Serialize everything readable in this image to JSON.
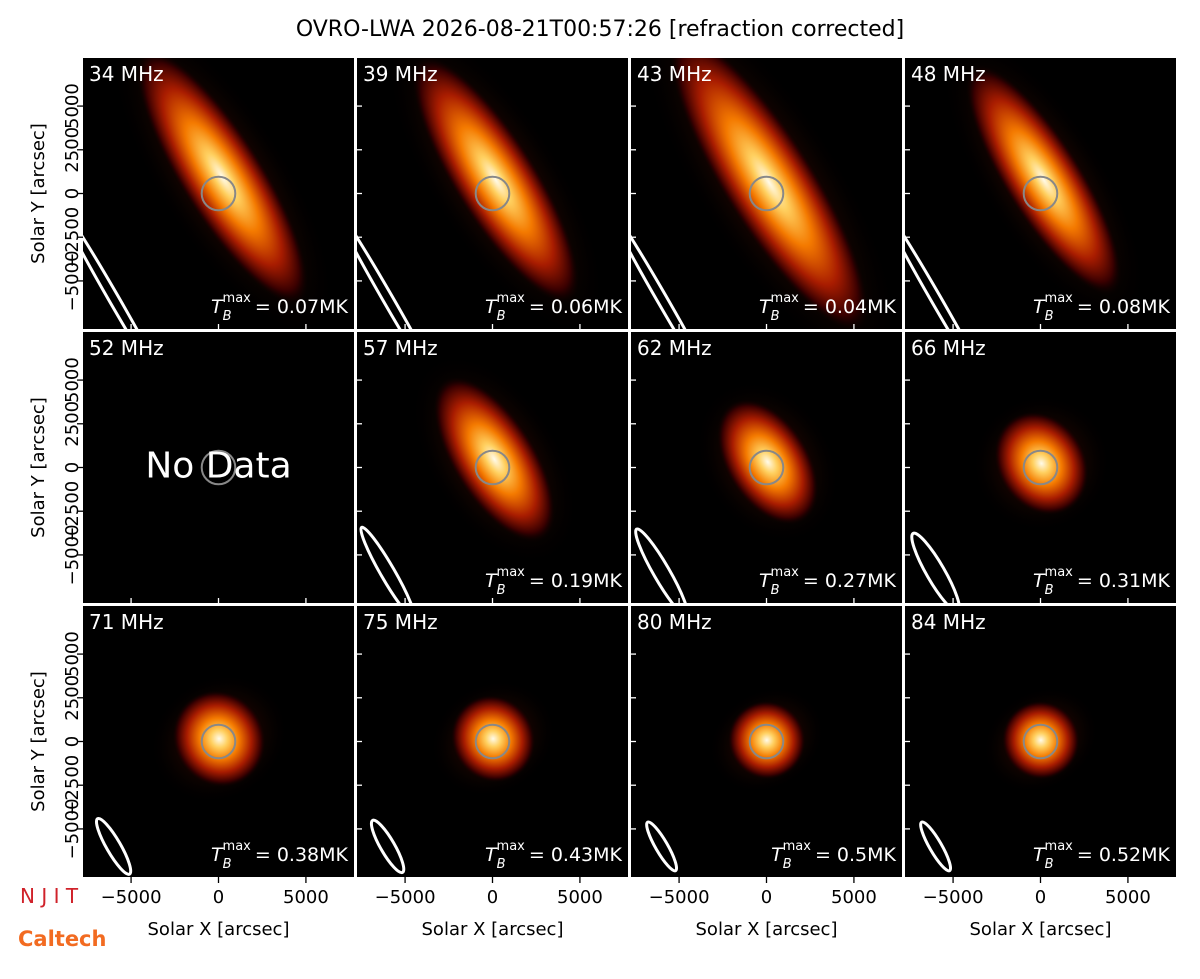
{
  "title": "OVRO-LWA 2026-08-21T00:57:26 [refraction corrected]",
  "xlabel": "Solar X [arcsec]",
  "ylabel": "Solar Y [arcsec]",
  "tb_symbol": {
    "main": "T",
    "sub": "B",
    "sup": "max"
  },
  "logos": [
    "N J I T",
    "Caltech"
  ],
  "xlim": [
    -7750,
    7750
  ],
  "ylim": [
    -7750,
    7750
  ],
  "xticks": [
    {
      "value": -5000,
      "label": "−5000"
    },
    0,
    5000
  ],
  "yticks": [
    {
      "value": -5000,
      "label": "−5000"
    },
    {
      "value": -2500,
      "label": "−2500"
    },
    0,
    2500,
    5000
  ],
  "chart_data": [
    {
      "type": "image",
      "title": "34 MHz",
      "annotation": "= 0.07MK"
    },
    {
      "type": "image",
      "title": "39 MHz",
      "annotation": "= 0.06MK"
    },
    {
      "type": "image",
      "title": "43 MHz",
      "annotation": "= 0.04MK"
    },
    {
      "type": "image",
      "title": "48 MHz",
      "annotation": "= 0.08MK"
    },
    {
      "type": "image",
      "title": "52 MHz",
      "note": "No Data"
    },
    {
      "type": "image",
      "title": "57 MHz",
      "annotation": "= 0.19MK"
    },
    {
      "type": "image",
      "title": "62 MHz",
      "annotation": "= 0.27MK"
    },
    {
      "type": "image",
      "title": "66 MHz",
      "annotation": "= 0.31MK"
    },
    {
      "type": "image",
      "title": "71 MHz",
      "annotation": "= 0.38MK"
    },
    {
      "type": "image",
      "title": "75 MHz",
      "annotation": "= 0.43MK"
    },
    {
      "type": "image",
      "title": "80 MHz",
      "annotation": "= 0.5MK"
    },
    {
      "type": "image",
      "title": "84 MHz",
      "annotation": "= 0.52MK"
    }
  ]
}
